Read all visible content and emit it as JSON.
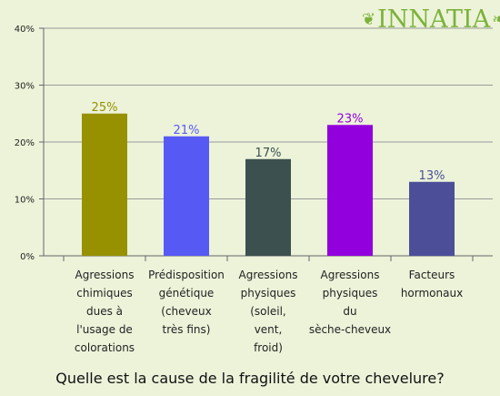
{
  "brand": {
    "name": "INNATIA",
    "color": "#7cb23a"
  },
  "chart_data": {
    "type": "bar",
    "title": "Quelle est la cause de la fragilité de votre chevelure?",
    "yticks": [
      "0%",
      "10%",
      "20%",
      "30%",
      "40%"
    ],
    "ylim": [
      0,
      40
    ],
    "grid": true,
    "categories": [
      [
        "Agressions",
        "chimiques",
        "dues à",
        "l'usage de",
        "colorations"
      ],
      [
        "Prédisposition",
        "génétique",
        "(cheveux",
        "très fins)"
      ],
      [
        "Agressions",
        "physiques",
        "(soleil,",
        "vent,",
        "froid)"
      ],
      [
        "Agressions",
        "physiques",
        "du",
        "sèche-cheveux"
      ],
      [
        "Facteurs",
        "hormonaux"
      ]
    ],
    "values": [
      25,
      21,
      17,
      23,
      13
    ],
    "value_labels": [
      "25%",
      "21%",
      "17%",
      "23%",
      "13%"
    ],
    "colors": [
      "#979100",
      "#5759f5",
      "#3c504f",
      "#9300de",
      "#4c4f97"
    ]
  }
}
